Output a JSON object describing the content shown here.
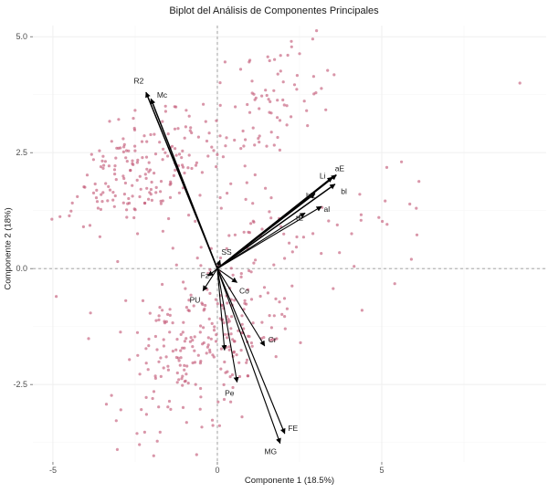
{
  "chart_data": {
    "type": "scatter",
    "subtype": "pca-biplot",
    "title": "Biplot del Análisis de Componentes Principales",
    "xlabel": "Componente 1 (18.5%)",
    "ylabel": "Componente 2 (18%)",
    "xlim": [
      -5.61,
      10.0
    ],
    "ylim": [
      -4.17,
      5.24
    ],
    "x_ticks": [
      {
        "value": -5,
        "label": "-5"
      },
      {
        "value": 0,
        "label": "0"
      },
      {
        "value": 5,
        "label": "5"
      }
    ],
    "y_ticks": [
      {
        "value": 5.0,
        "label": "5.0"
      },
      {
        "value": 2.5,
        "label": "2.5"
      },
      {
        "value": 0.0,
        "label": "0.0"
      },
      {
        "value": -2.5,
        "label": "-2.5"
      }
    ],
    "x_minor": [
      -2.5,
      2.5,
      7.5
    ],
    "y_minor": [
      3.75,
      1.25,
      -1.25,
      -3.75
    ],
    "grid": {
      "major_color": "#efefef",
      "minor_color": "#f7f7f7",
      "zero_line_color": "#999999",
      "tick_color": "#4d4d4d",
      "tick_label_color": "#4d4d4d"
    },
    "points_style": {
      "color": "#c0506f",
      "opacity": 0.6,
      "radius": 1.6
    },
    "scatter": {
      "seed": 42,
      "clusters": [
        {
          "cx": -2.2,
          "cy": 2.2,
          "sx": 1.25,
          "sy": 0.62,
          "corr": 0.35,
          "n": 195
        },
        {
          "cx": 1.7,
          "cy": 3.6,
          "sx": 0.95,
          "sy": 0.6,
          "corr": 0.3,
          "n": 70
        },
        {
          "cx": 1.1,
          "cy": 0.55,
          "sx": 1.15,
          "sy": 0.75,
          "corr": 0.2,
          "n": 55
        },
        {
          "cx": -0.5,
          "cy": -1.55,
          "sx": 1.35,
          "sy": 0.72,
          "corr": 0.4,
          "n": 225
        },
        {
          "cx": 4.6,
          "cy": 1.1,
          "sx": 0.7,
          "sy": 0.85,
          "corr": 0.0,
          "n": 16
        },
        {
          "cx": -1.6,
          "cy": -3.3,
          "sx": 1.05,
          "sy": 0.45,
          "corr": 0.2,
          "n": 24
        }
      ],
      "outliers": [
        [
          9.2,
          4.0
        ],
        [
          6.05,
          1.3
        ],
        [
          5.9,
          0.2
        ],
        [
          5.6,
          2.3
        ],
        [
          2.9,
          4.95
        ],
        [
          2.25,
          4.9
        ],
        [
          -4.9,
          -0.6
        ],
        [
          4.4,
          -0.9
        ]
      ]
    },
    "loadings": [
      {
        "label": "R2",
        "x": -2.17,
        "y": 3.8,
        "lx": -2.39,
        "ly": 4.05,
        "w": 1.5
      },
      {
        "label": "Mc",
        "x": -2.02,
        "y": 3.66,
        "lx": -1.68,
        "ly": 3.74,
        "w": 1.5
      },
      {
        "label": "aE",
        "x": 3.62,
        "y": 2.02,
        "lx": 3.72,
        "ly": 2.16,
        "w": 1.7
      },
      {
        "label": "Li",
        "x": 3.5,
        "y": 1.97,
        "lx": 3.2,
        "ly": 2.0,
        "w": 1.7
      },
      {
        "label": "bl",
        "x": 3.58,
        "y": 1.82,
        "lx": 3.85,
        "ly": 1.67,
        "w": 1.5
      },
      {
        "label": "hE",
        "x": 2.97,
        "y": 1.62,
        "lx": 2.84,
        "ly": 1.58,
        "w": 1.5
      },
      {
        "label": "al",
        "x": 3.17,
        "y": 1.34,
        "lx": 3.33,
        "ly": 1.28,
        "w": 1.1
      },
      {
        "label": "tE",
        "x": 2.67,
        "y": 1.2,
        "lx": 2.5,
        "ly": 1.1,
        "w": 1.1
      },
      {
        "label": "SS",
        "x": 0.08,
        "y": 0.18,
        "lx": 0.28,
        "ly": 0.36,
        "w": 1.1
      },
      {
        "label": "Fz",
        "x": -0.28,
        "y": -0.16,
        "lx": -0.38,
        "ly": -0.14,
        "w": 1.1
      },
      {
        "label": "PU",
        "x": -0.44,
        "y": -0.48,
        "lx": -0.68,
        "ly": -0.68,
        "w": 1.1
      },
      {
        "label": "Co",
        "x": 0.6,
        "y": -0.3,
        "lx": 0.82,
        "ly": -0.48,
        "w": 1.1
      },
      {
        "label": "",
        "x": 0.22,
        "y": -1.76,
        "lx": 0.22,
        "ly": -1.76,
        "w": 1.1
      },
      {
        "label": "Cr",
        "x": 1.44,
        "y": -1.67,
        "lx": 1.67,
        "ly": -1.53,
        "w": 1.1
      },
      {
        "label": "Pe",
        "x": 0.6,
        "y": -2.45,
        "lx": 0.37,
        "ly": -2.68,
        "w": 1.1
      },
      {
        "label": "FE",
        "x": 2.05,
        "y": -3.56,
        "lx": 2.3,
        "ly": -3.44,
        "w": 1.15
      },
      {
        "label": "MG",
        "x": 1.91,
        "y": -3.77,
        "lx": 1.62,
        "ly": -3.94,
        "w": 1.15
      }
    ],
    "arrow_color": "#000000",
    "loading_label_color": "#1a1a1a"
  }
}
